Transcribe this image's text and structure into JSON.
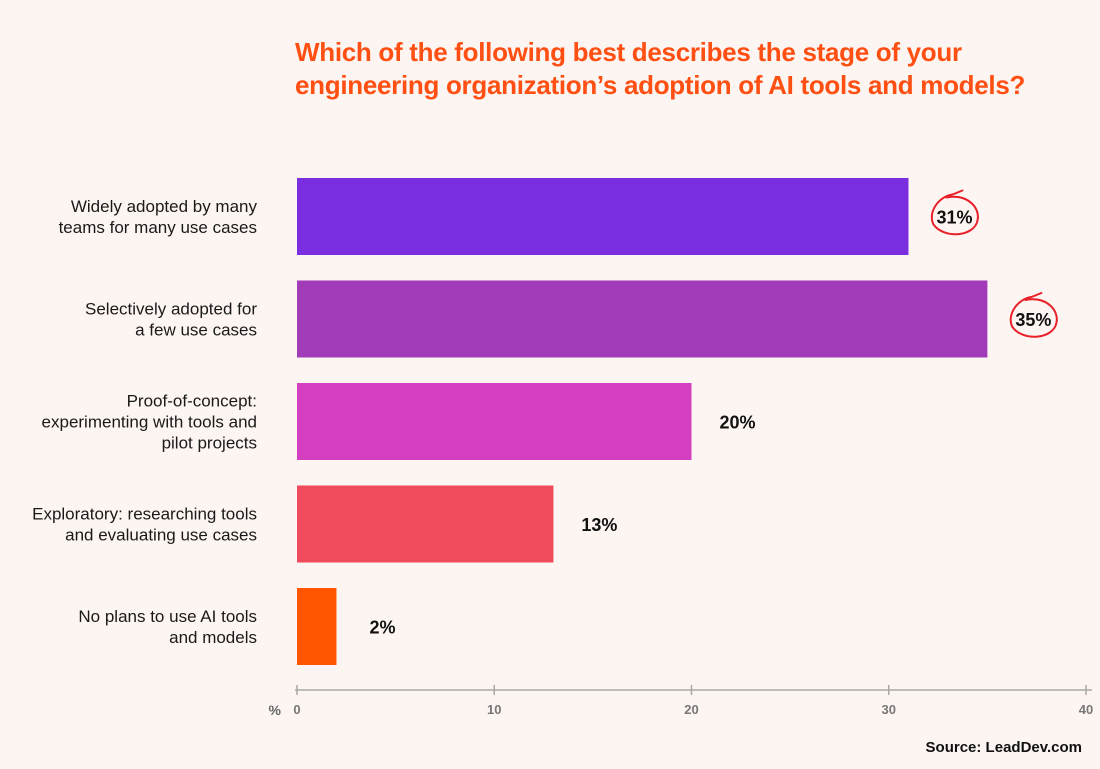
{
  "title_lines": [
    "Which of the following best describes the stage of your",
    "engineering organization’s adoption of AI tools and models?"
  ],
  "title_color": "#ff4f12",
  "source": "Source: LeadDev.com",
  "chart_data": {
    "type": "bar",
    "orientation": "horizontal",
    "categories": [
      [
        "Widely adopted by many",
        "teams for many use cases"
      ],
      [
        "Selectively adopted for",
        "a few use cases"
      ],
      [
        "Proof-of-concept:",
        "experimenting with tools and",
        "pilot projects"
      ],
      [
        "Exploratory: researching tools",
        "and evaluating use cases"
      ],
      [
        "No plans to use AI tools",
        "and models"
      ]
    ],
    "values": [
      31,
      35,
      20,
      13,
      2
    ],
    "value_labels": [
      "31%",
      "35%",
      "20%",
      "13%",
      "2%"
    ],
    "circled": [
      true,
      true,
      false,
      false,
      false
    ],
    "colors": [
      "#7b2de0",
      "#a13bb7",
      "#d43fc1",
      "#ef4b5c",
      "#ff5400"
    ],
    "xlabel": "%",
    "xlim": [
      0,
      40
    ],
    "xticks": [
      0,
      10,
      20,
      30,
      40
    ],
    "circle_color": "#e8202a"
  }
}
